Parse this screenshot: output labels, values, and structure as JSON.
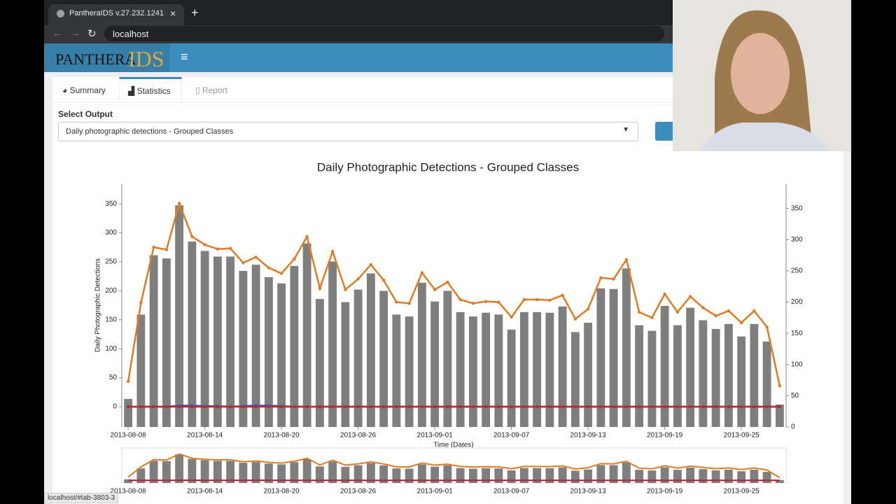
{
  "browser": {
    "tab_title": "PantheraIDS v.27.232.1241",
    "url": "localhost"
  },
  "app": {
    "logo_main": "PANTHERA",
    "logo_accent": "IDS",
    "tabs": [
      "Summary",
      "Statistics",
      "Report"
    ],
    "select_label": "Select Output",
    "select_value": "Daily photographic detections - Grouped Classes"
  },
  "status_bar": "localhost/#tab-3803-3",
  "chart_data": {
    "type": "bar",
    "title": "Daily Photographic Detections - Grouped Classes",
    "ylabel": "Daily Photographic Detections",
    "xlabel": "Time (Dates)",
    "x": [
      "2013-08-08",
      "2013-08-09",
      "2013-08-10",
      "2013-08-11",
      "2013-08-12",
      "2013-08-13",
      "2013-08-14",
      "2013-08-15",
      "2013-08-16",
      "2013-08-17",
      "2013-08-18",
      "2013-08-19",
      "2013-08-20",
      "2013-08-21",
      "2013-08-22",
      "2013-08-23",
      "2013-08-24",
      "2013-08-25",
      "2013-08-26",
      "2013-08-27",
      "2013-08-28",
      "2013-08-29",
      "2013-08-30",
      "2013-08-31",
      "2013-09-01",
      "2013-09-02",
      "2013-09-03",
      "2013-09-04",
      "2013-09-05",
      "2013-09-06",
      "2013-09-07",
      "2013-09-08",
      "2013-09-09",
      "2013-09-10",
      "2013-09-11",
      "2013-09-12",
      "2013-09-13",
      "2013-09-14",
      "2013-09-15",
      "2013-09-16",
      "2013-09-17",
      "2013-09-18",
      "2013-09-19",
      "2013-09-20",
      "2013-09-21",
      "2013-09-22",
      "2013-09-23",
      "2013-09-24",
      "2013-09-25",
      "2013-09-26",
      "2013-09-27",
      "2013-09-28"
    ],
    "xlim": [
      "2013-08-07T12:00:00Z",
      "2013-09-28T12:00:00Z"
    ],
    "xticks": [
      "2013-08-08",
      "2013-08-14",
      "2013-08-20",
      "2013-08-26",
      "2013-09-01",
      "2013-09-07",
      "2013-09-13",
      "2013-09-19",
      "2013-09-25"
    ],
    "ylim": [
      -35,
      384
    ],
    "yticks": [
      0,
      50,
      100,
      150,
      200,
      250,
      300,
      350
    ],
    "y2lim": [
      0,
      389
    ],
    "y2ticks": [
      0,
      50,
      100,
      150,
      200,
      250,
      300,
      350
    ],
    "series": [
      {
        "type": "bar",
        "axis": "y2",
        "color": "#7f7f7f",
        "values": [
          45,
          180,
          275,
          270,
          355,
          297,
          282,
          273,
          273,
          250,
          260,
          240,
          230,
          258,
          294,
          205,
          265,
          200,
          220,
          246,
          218,
          180,
          177,
          231,
          201,
          218,
          184,
          177,
          183,
          180,
          156,
          184,
          184,
          183,
          193,
          152,
          167,
          222,
          221,
          254,
          163,
          154,
          194,
          163,
          191,
          171,
          157,
          165,
          145,
          165,
          137,
          36
        ]
      },
      {
        "type": "line",
        "axis": "y2",
        "color": "#e07b24",
        "values": [
          73,
          199,
          288,
          284,
          358,
          305,
          292,
          285,
          286,
          263,
          272,
          255,
          246,
          269,
          305,
          222,
          281,
          220,
          237,
          260,
          235,
          200,
          198,
          247,
          220,
          232,
          204,
          198,
          201,
          200,
          176,
          204,
          204,
          203,
          211,
          173,
          189,
          239,
          237,
          268,
          184,
          175,
          213,
          184,
          209,
          191,
          178,
          186,
          167,
          186,
          160,
          66
        ]
      },
      {
        "type": "line",
        "axis": "y",
        "color": "#3b5bb5",
        "values": [
          0,
          0,
          0,
          0,
          2,
          2,
          1,
          1,
          0,
          1,
          2,
          2,
          1,
          0,
          0,
          0,
          0,
          0,
          0,
          0,
          0,
          0,
          0,
          0,
          0,
          0,
          0,
          0,
          0,
          0,
          0,
          0,
          0,
          0,
          0,
          0,
          0,
          0,
          0,
          0,
          0,
          0,
          0,
          0,
          0,
          0,
          0,
          0,
          0,
          0,
          0,
          0
        ]
      },
      {
        "type": "line",
        "axis": "y",
        "color": "#c0262d",
        "values": [
          0,
          0,
          0,
          0,
          0,
          0,
          0,
          0,
          0,
          0,
          0,
          0,
          0,
          0,
          0,
          0,
          0,
          0,
          0,
          0,
          0,
          0,
          0,
          0,
          0,
          0,
          0,
          0,
          0,
          0,
          0,
          0,
          0,
          0,
          0,
          0,
          0,
          0,
          0,
          0,
          0,
          0,
          0,
          0,
          0,
          0,
          0,
          0,
          0,
          0,
          0,
          0
        ]
      }
    ]
  }
}
